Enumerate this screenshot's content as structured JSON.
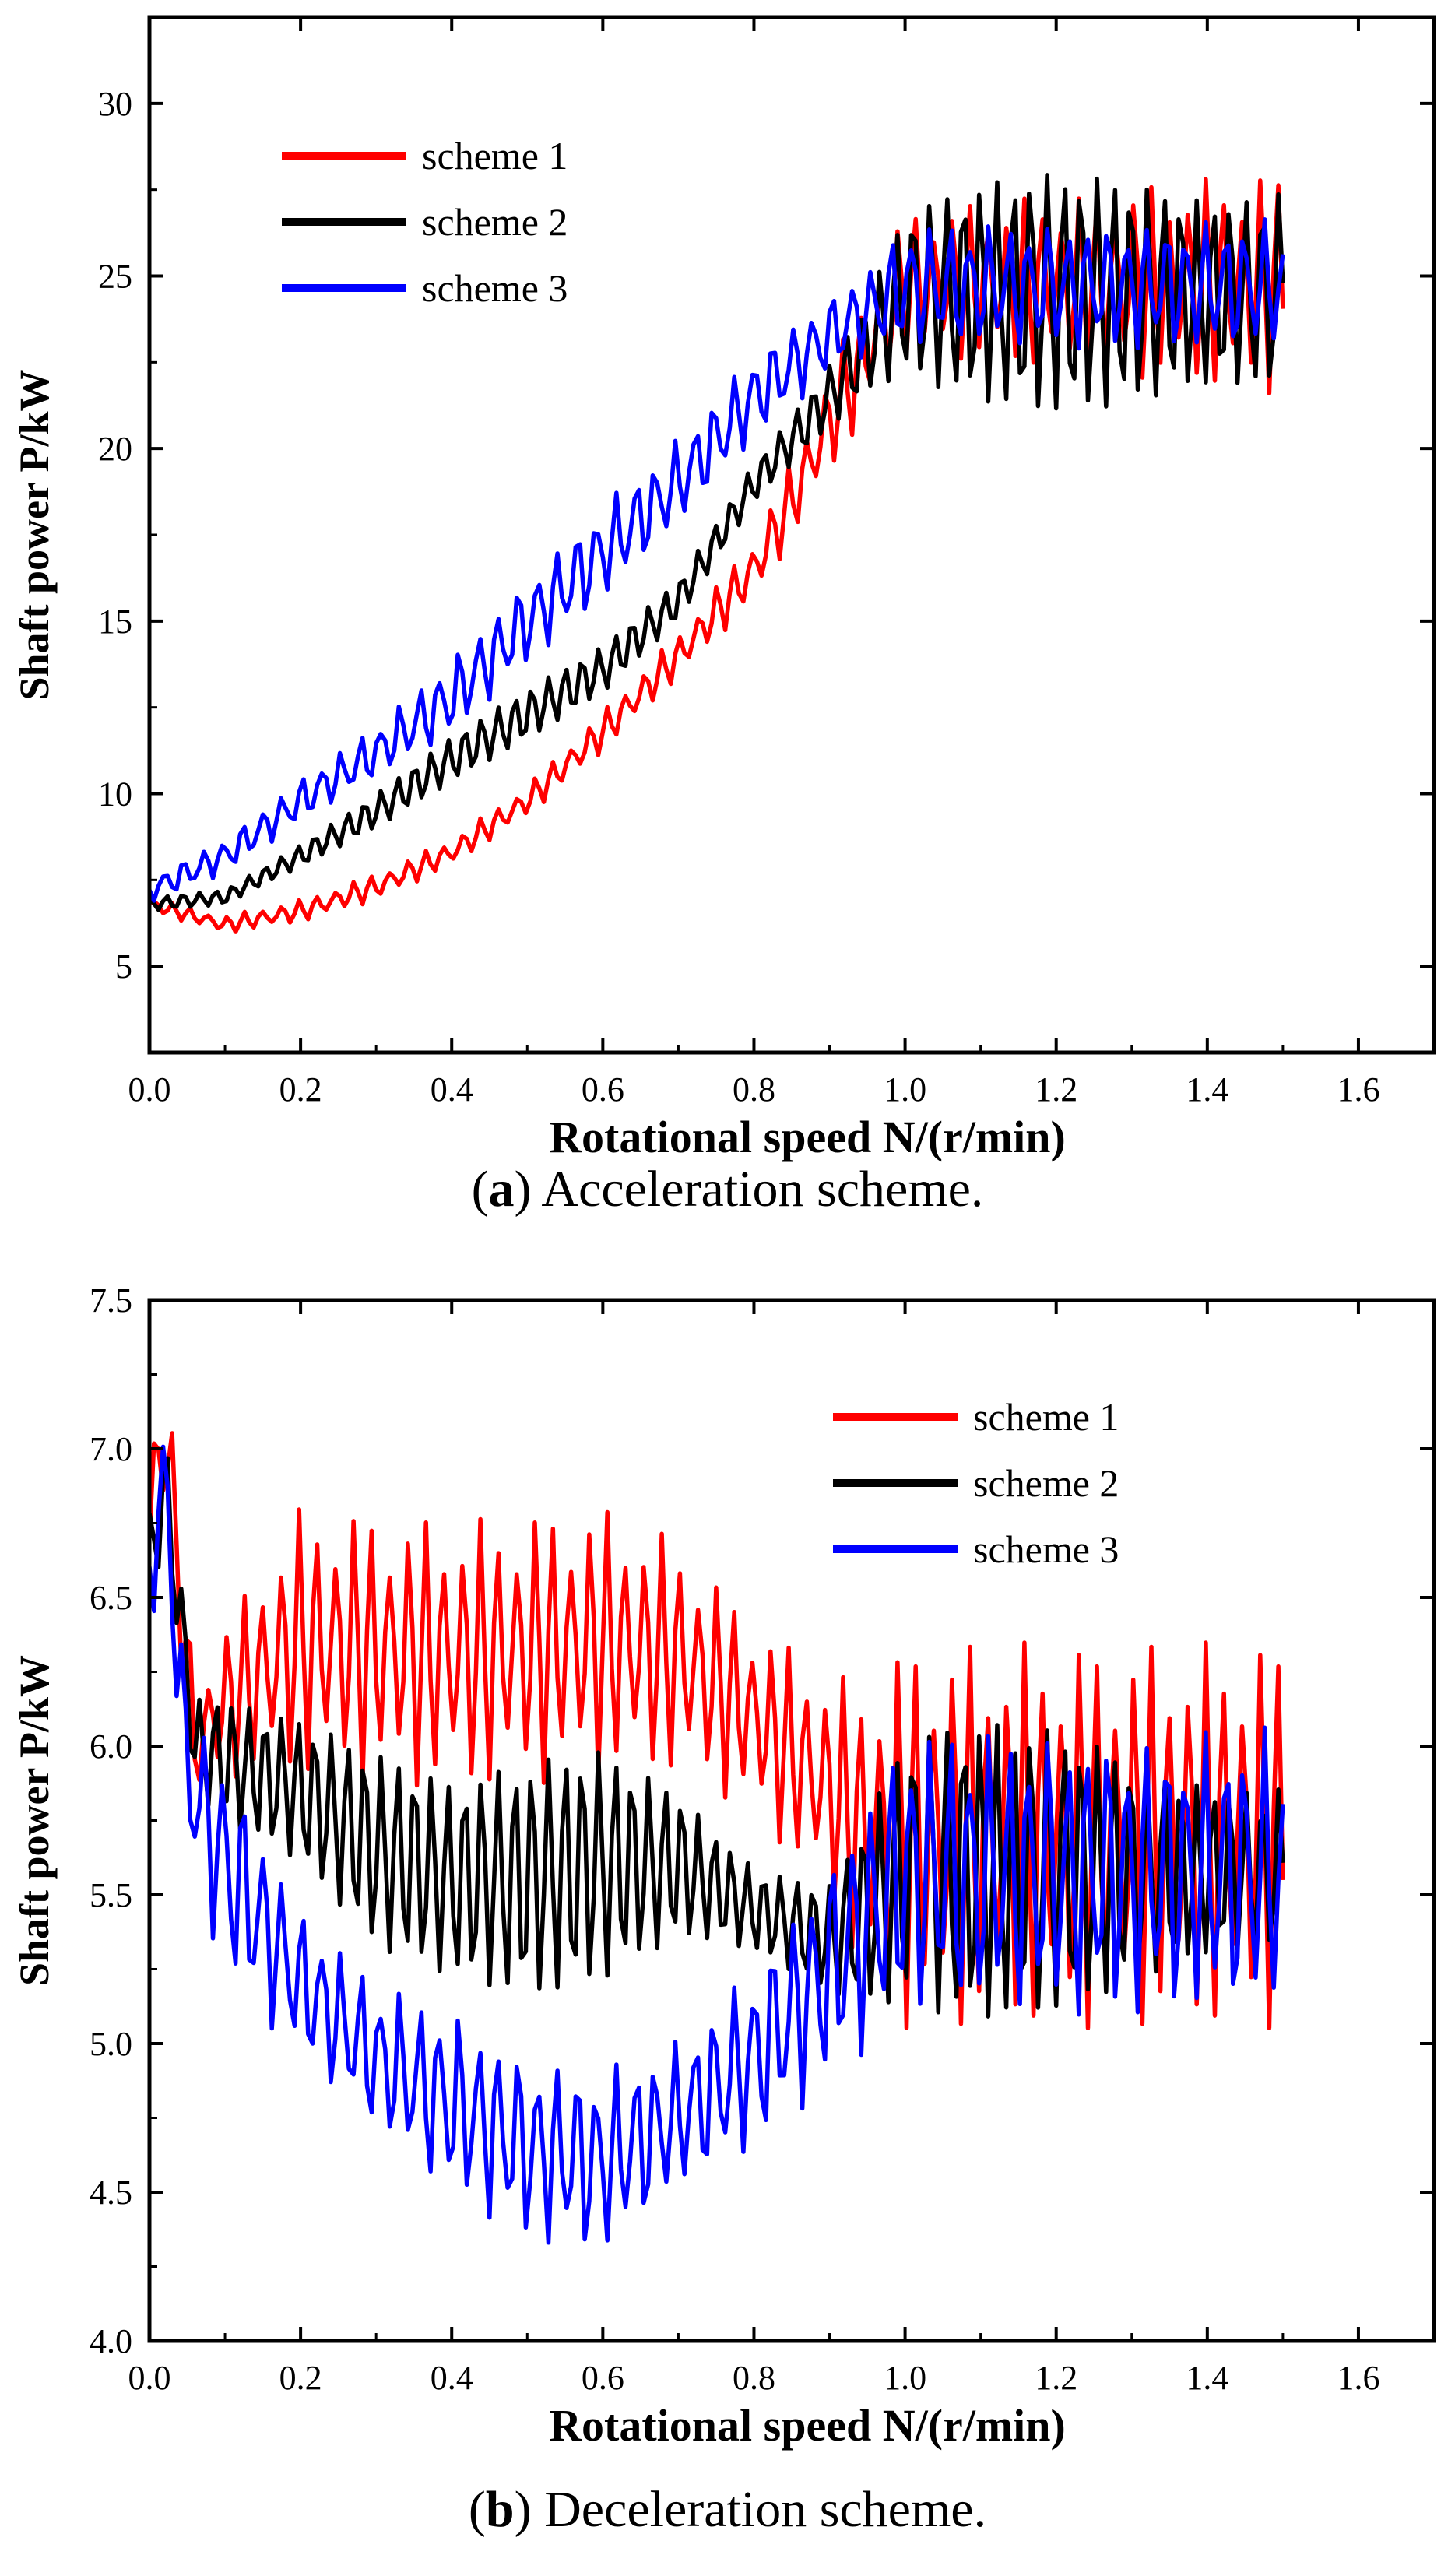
{
  "chart_data": [
    {
      "type": "line",
      "panel_id": "a",
      "caption_letter": "a",
      "caption_text": "Acceleration scheme.",
      "xlabel": "Rotational speed N/(r/min)",
      "ylabel": "Shaft power P/kW",
      "xlim": [
        0.0,
        1.7
      ],
      "ylim": [
        2.5,
        32.5
      ],
      "xticks": [
        0.0,
        0.2,
        0.4,
        0.6,
        0.8,
        1.0,
        1.2,
        1.4,
        1.6
      ],
      "xtick_labels": [
        "0.0",
        "0.2",
        "0.4",
        "0.6",
        "0.8",
        "1.0",
        "1.2",
        "1.4",
        "1.6"
      ],
      "yticks": [
        5,
        10,
        15,
        20,
        25,
        30
      ],
      "ytick_labels": [
        "5",
        "10",
        "15",
        "20",
        "25",
        "30"
      ],
      "legend_position": "top-left",
      "series": [
        {
          "name": "scheme 1",
          "color": "#ff0000",
          "x": [
            0.0,
            0.1,
            0.2,
            0.3,
            0.4,
            0.5,
            0.6,
            0.7,
            0.8,
            0.85,
            0.9,
            0.95,
            1.0,
            1.5
          ],
          "y": [
            6.8,
            6.2,
            6.6,
            7.3,
            8.3,
            9.8,
            11.8,
            14.0,
            16.5,
            18.5,
            20.8,
            22.8,
            24.8,
            24.8
          ],
          "oscillation": [
            0.15,
            0.2,
            0.25,
            0.3,
            0.3,
            0.35,
            0.45,
            0.5,
            0.7,
            0.9,
            1.2,
            1.4,
            1.6,
            2.5
          ]
        },
        {
          "name": "scheme 2",
          "color": "#000000",
          "x": [
            0.0,
            0.1,
            0.2,
            0.3,
            0.4,
            0.5,
            0.6,
            0.7,
            0.8,
            0.9,
            0.95,
            1.0,
            1.5
          ],
          "y": [
            6.8,
            7.0,
            8.2,
            9.5,
            11.0,
            12.3,
            13.6,
            15.6,
            19.0,
            21.5,
            23.0,
            24.5,
            24.5
          ],
          "oscillation": [
            0.2,
            0.3,
            0.4,
            0.45,
            0.5,
            0.55,
            0.6,
            0.7,
            0.8,
            1.0,
            1.3,
            2.0,
            4.0
          ]
        },
        {
          "name": "scheme 3",
          "color": "#0000ff",
          "x": [
            0.0,
            0.1,
            0.2,
            0.3,
            0.4,
            0.5,
            0.6,
            0.7,
            0.8,
            0.9,
            0.95,
            1.0,
            1.5
          ],
          "y": [
            7.2,
            8.2,
            9.8,
            11.2,
            12.8,
            15.0,
            17.0,
            19.0,
            21.5,
            23.3,
            24.0,
            24.7,
            24.7
          ],
          "oscillation": [
            0.3,
            0.4,
            0.5,
            0.6,
            0.9,
            1.0,
            1.1,
            1.0,
            1.0,
            0.9,
            1.0,
            1.4,
            1.5
          ]
        }
      ]
    },
    {
      "type": "line",
      "panel_id": "b",
      "caption_letter": "b",
      "caption_text": "Deceleration scheme.",
      "xlabel": "Rotational speed N/(r/min)",
      "ylabel": "Shaft power P/kW",
      "xlim": [
        0.0,
        1.7
      ],
      "ylim": [
        4.0,
        7.5
      ],
      "xticks": [
        0.0,
        0.2,
        0.4,
        0.6,
        0.8,
        1.0,
        1.2,
        1.4,
        1.6
      ],
      "xtick_labels": [
        "0.0",
        "0.2",
        "0.4",
        "0.6",
        "0.8",
        "1.0",
        "1.2",
        "1.4",
        "1.6"
      ],
      "yticks": [
        4.0,
        4.5,
        5.0,
        5.5,
        6.0,
        6.5,
        7.0,
        7.5
      ],
      "ytick_labels": [
        "4.0",
        "4.5",
        "5.0",
        "5.5",
        "6.0",
        "6.5",
        "7.0",
        "7.5"
      ],
      "legend_position": "top-right",
      "series": [
        {
          "name": "scheme 1",
          "color": "#ff0000",
          "x": [
            0.0,
            0.02,
            0.06,
            0.1,
            0.2,
            0.4,
            0.6,
            0.7,
            0.8,
            0.9,
            0.95,
            1.0,
            1.5
          ],
          "y": [
            6.7,
            7.1,
            6.0,
            6.15,
            6.35,
            6.3,
            6.35,
            6.3,
            6.1,
            5.85,
            5.7,
            5.7,
            5.7
          ],
          "oscillation": [
            0.3,
            0.2,
            0.15,
            0.2,
            0.35,
            0.35,
            0.35,
            0.3,
            0.25,
            0.3,
            0.4,
            0.5,
            0.5
          ]
        },
        {
          "name": "scheme 2",
          "color": "#000000",
          "x": [
            0.0,
            0.02,
            0.06,
            0.1,
            0.2,
            0.3,
            0.4,
            0.5,
            0.6,
            0.7,
            0.8,
            0.9,
            0.95,
            1.0,
            1.5
          ],
          "y": [
            6.6,
            6.9,
            6.0,
            5.95,
            5.85,
            5.65,
            5.55,
            5.55,
            5.6,
            5.6,
            5.45,
            5.35,
            5.45,
            5.58,
            5.58
          ],
          "oscillation": [
            0.2,
            0.2,
            0.2,
            0.3,
            0.3,
            0.3,
            0.25,
            0.3,
            0.35,
            0.3,
            0.2,
            0.2,
            0.3,
            0.38,
            0.38
          ]
        },
        {
          "name": "scheme 3",
          "color": "#0000ff",
          "x": [
            0.0,
            0.02,
            0.05,
            0.1,
            0.2,
            0.3,
            0.4,
            0.5,
            0.6,
            0.7,
            0.8,
            0.9,
            1.0,
            1.5
          ],
          "y": [
            6.6,
            6.9,
            5.9,
            5.6,
            5.2,
            4.95,
            4.8,
            4.65,
            4.6,
            4.75,
            4.95,
            5.25,
            5.57,
            5.57
          ],
          "oscillation": [
            0.2,
            0.2,
            0.2,
            0.3,
            0.2,
            0.2,
            0.25,
            0.25,
            0.25,
            0.2,
            0.25,
            0.3,
            0.38,
            0.38
          ]
        }
      ]
    }
  ]
}
